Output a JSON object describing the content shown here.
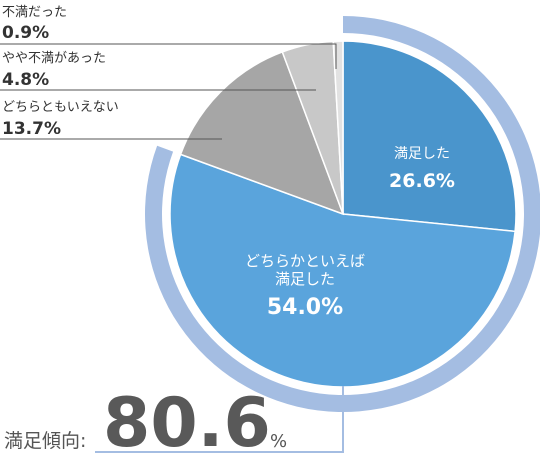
{
  "chart_data": {
    "type": "pie",
    "title": "",
    "slices": [
      {
        "label": "満足した",
        "value": 26.6,
        "display": "26.6%",
        "color": "#4a95cc"
      },
      {
        "label": "どちらかといえば 満足した",
        "value": 54.0,
        "display": "54.0%",
        "color": "#5aa4dc"
      },
      {
        "label": "どちらともいえない",
        "value": 13.7,
        "display": "13.7%",
        "color": "#a6a6a6"
      },
      {
        "label": "やや不満があった",
        "value": 4.8,
        "display": "4.8%",
        "color": "#c8c8c8"
      },
      {
        "label": "不満だった",
        "value": 0.9,
        "display": "0.9%",
        "color": "#e2e2e2"
      }
    ],
    "inside_labels": [
      {
        "lines": [
          "満足した"
        ],
        "value": "26.6%"
      },
      {
        "lines": [
          "どちらかといえば",
          "満足した"
        ],
        "value": "54.0%"
      }
    ],
    "outside_labels": [
      {
        "label": "不満だった",
        "value": "0.9%"
      },
      {
        "label": "やや不満があった",
        "value": "4.8%"
      },
      {
        "label": "どちらともいえない",
        "value": "13.7%"
      }
    ],
    "highlight_ring": {
      "covers": [
        "満足した",
        "どちらかといえば 満足した"
      ],
      "color": "#a4bde2"
    },
    "summary": {
      "label": "満足傾向:",
      "value": "80.6",
      "unit": "%"
    }
  }
}
